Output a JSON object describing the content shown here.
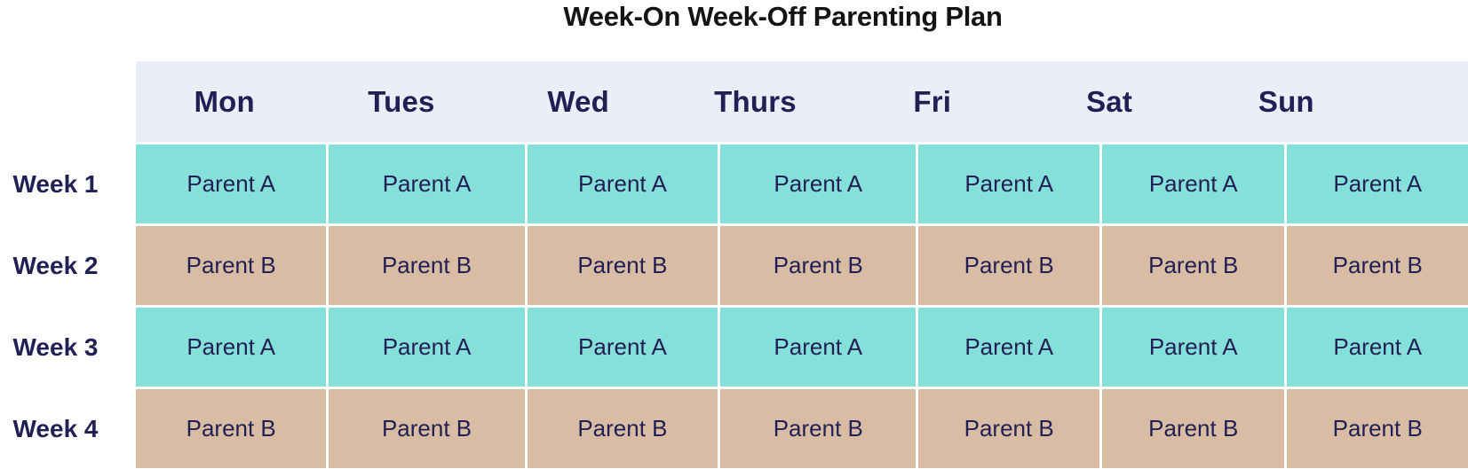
{
  "title": "Week-On Week-Off Parenting Plan",
  "table": {
    "day_headers": [
      "Mon",
      "Tues",
      "Wed",
      "Thurs",
      "Fri",
      "Sat",
      "Sun"
    ],
    "rows": [
      {
        "label": "Week 1",
        "parent": "Parent A",
        "cells": [
          "Parent A",
          "Parent A",
          "Parent A",
          "Parent A",
          "Parent A",
          "Parent A",
          "Parent A"
        ]
      },
      {
        "label": "Week 2",
        "parent": "Parent B",
        "cells": [
          "Parent B",
          "Parent B",
          "Parent B",
          "Parent B",
          "Parent B",
          "Parent B",
          "Parent B"
        ]
      },
      {
        "label": "Week 3",
        "parent": "Parent A",
        "cells": [
          "Parent A",
          "Parent A",
          "Parent A",
          "Parent A",
          "Parent A",
          "Parent A",
          "Parent A"
        ]
      },
      {
        "label": "Week 4",
        "parent": "Parent B",
        "cells": [
          "Parent B",
          "Parent B",
          "Parent B",
          "Parent B",
          "Parent B",
          "Parent B",
          "Parent B"
        ]
      }
    ]
  },
  "colors": {
    "parent_a_bg": "#85E0DA",
    "parent_b_bg": "#D8BCA4",
    "header_bg": "#EBEEF7",
    "navy": "#211F54",
    "title_color": "#141414"
  },
  "chart_data": {
    "type": "table",
    "title": "Week-On Week-Off Parenting Plan",
    "columns": [
      "Mon",
      "Tues",
      "Wed",
      "Thurs",
      "Fri",
      "Sat",
      "Sun"
    ],
    "row_labels": [
      "Week 1",
      "Week 2",
      "Week 3",
      "Week 4"
    ],
    "rows": [
      [
        "Parent A",
        "Parent A",
        "Parent A",
        "Parent A",
        "Parent A",
        "Parent A",
        "Parent A"
      ],
      [
        "Parent B",
        "Parent B",
        "Parent B",
        "Parent B",
        "Parent B",
        "Parent B",
        "Parent B"
      ],
      [
        "Parent A",
        "Parent A",
        "Parent A",
        "Parent A",
        "Parent A",
        "Parent A",
        "Parent A"
      ],
      [
        "Parent B",
        "Parent B",
        "Parent B",
        "Parent B",
        "Parent B",
        "Parent B",
        "Parent B"
      ]
    ],
    "cell_colors": {
      "Parent A": "#85E0DA",
      "Parent B": "#D8BCA4"
    },
    "layout": {
      "header_background": "#EBEEF7",
      "gridlines": "white",
      "legend": "none"
    }
  }
}
